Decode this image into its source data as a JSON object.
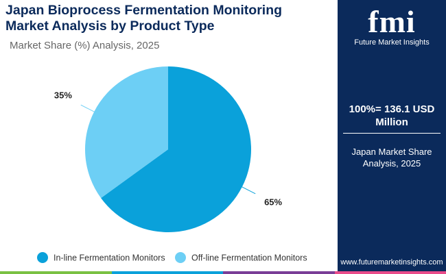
{
  "chart_data": {
    "type": "pie",
    "title": "Japan Bioprocess Fermentation Monitoring Market Analysis by Product Type",
    "subtitle": "Market Share (%) Analysis, 2025",
    "categories": [
      "In-line Fermentation Monitors",
      "Off-line Fermentation Monitors"
    ],
    "values": [
      65,
      35
    ],
    "value_labels": [
      "65%",
      "35%"
    ],
    "colors": [
      "#0aa1da",
      "#6dcff5"
    ]
  },
  "panel": {
    "logo": "fmi",
    "logo_caption": "Future Market Insights",
    "total": "100%= 136.1 USD Million",
    "caption": "Japan Market Share Analysis, 2025",
    "website": "www.futuremarketinsights.com"
  }
}
